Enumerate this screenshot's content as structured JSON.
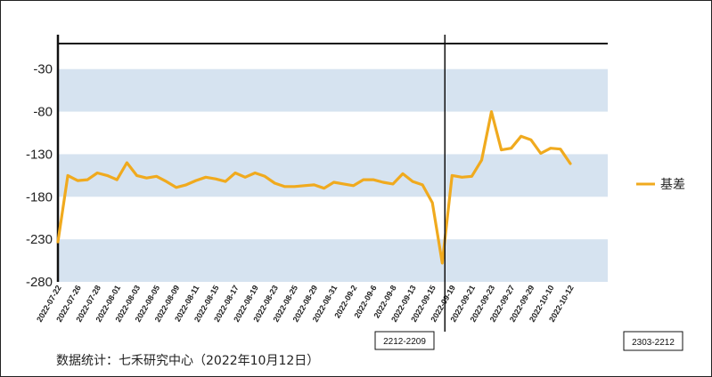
{
  "chart_data": {
    "type": "line",
    "ylim": [
      -280,
      0
    ],
    "yticks": [
      -30,
      -80,
      -130,
      -180,
      -230,
      -280
    ],
    "band_color": "#d6e3f0",
    "series": [
      {
        "name": "基差",
        "color": "#f0aa1e",
        "x": [
          "2022-07-22",
          "2022-07-25",
          "2022-07-26",
          "2022-07-27",
          "2022-07-28",
          "2022-07-29",
          "2022-08-01",
          "2022-08-02",
          "2022-08-03",
          "2022-08-04",
          "2022-08-05",
          "2022-08-08",
          "2022-08-09",
          "2022-08-10",
          "2022-08-11",
          "2022-08-12",
          "2022-08-15",
          "2022-08-16",
          "2022-08-17",
          "2022-08-18",
          "2022-08-19",
          "2022-08-22",
          "2022-08-23",
          "2022-08-24",
          "2022-08-25",
          "2022-08-26",
          "2022-08-29",
          "2022-08-30",
          "2022-08-31",
          "2022-09-1",
          "2022-09-2",
          "2022-09-5",
          "2022-09-6",
          "2022-09-7",
          "2022-09-8",
          "2022-09-9",
          "2022-09-13",
          "2022-09-14",
          "2022-09-15",
          "2022-09-16",
          "2022-09-19",
          "2022-09-20",
          "2022-09-21",
          "2022-09-22",
          "2022-09-23",
          "2022-09-26",
          "2022-09-27",
          "2022-09-28",
          "2022-09-29",
          "2022-09-30",
          "2022-10-10",
          "2022-10-11",
          "2022-10-12"
        ],
        "values": [
          -233,
          -155,
          -161,
          -160,
          -152,
          -155,
          -160,
          -140,
          -155,
          -158,
          -156,
          -162,
          -169,
          -166,
          -161,
          -157,
          -159,
          -162,
          -152,
          -157,
          -152,
          -156,
          -164,
          -168,
          -168,
          -167,
          -166,
          -170,
          -163,
          -165,
          -167,
          -160,
          -160,
          -163,
          -165,
          -153,
          -162,
          -166,
          -187,
          -258,
          -155,
          -157,
          -156,
          -137,
          -80,
          -125,
          -123,
          -109,
          -113,
          -129,
          -123,
          -124,
          -141
        ]
      }
    ],
    "xtick_labels": [
      "2022-07-22",
      "2022-07-26",
      "2022-07-28",
      "2022-08-01",
      "2022-08-03",
      "2022-08-05",
      "2022-08-09",
      "2022-08-11",
      "2022-08-15",
      "2022-08-17",
      "2022-08-19",
      "2022-08-23",
      "2022-08-25",
      "2022-08-29",
      "2022-08-31",
      "2022-09-2",
      "2022-09-6",
      "2022-09-8",
      "2022-09-13",
      "2022-09-15",
      "2022-09-19",
      "2022-09-21",
      "2022-09-23",
      "2022-09-27",
      "2022-09-29",
      "2022-10-10",
      "2022-10-12"
    ],
    "xtick_indices": [
      0,
      2,
      4,
      6,
      8,
      10,
      12,
      14,
      16,
      18,
      20,
      22,
      24,
      26,
      28,
      30,
      32,
      34,
      36,
      38,
      40,
      42,
      44,
      46,
      48,
      50,
      52
    ],
    "contract_switch": {
      "label": "2212-2209",
      "index": 39
    },
    "next_contract_label": "2303-2212",
    "legend": {
      "label": "基差",
      "placement": "right"
    }
  },
  "source_text": "数据统计：七禾研究中心（2022年10月12日）"
}
